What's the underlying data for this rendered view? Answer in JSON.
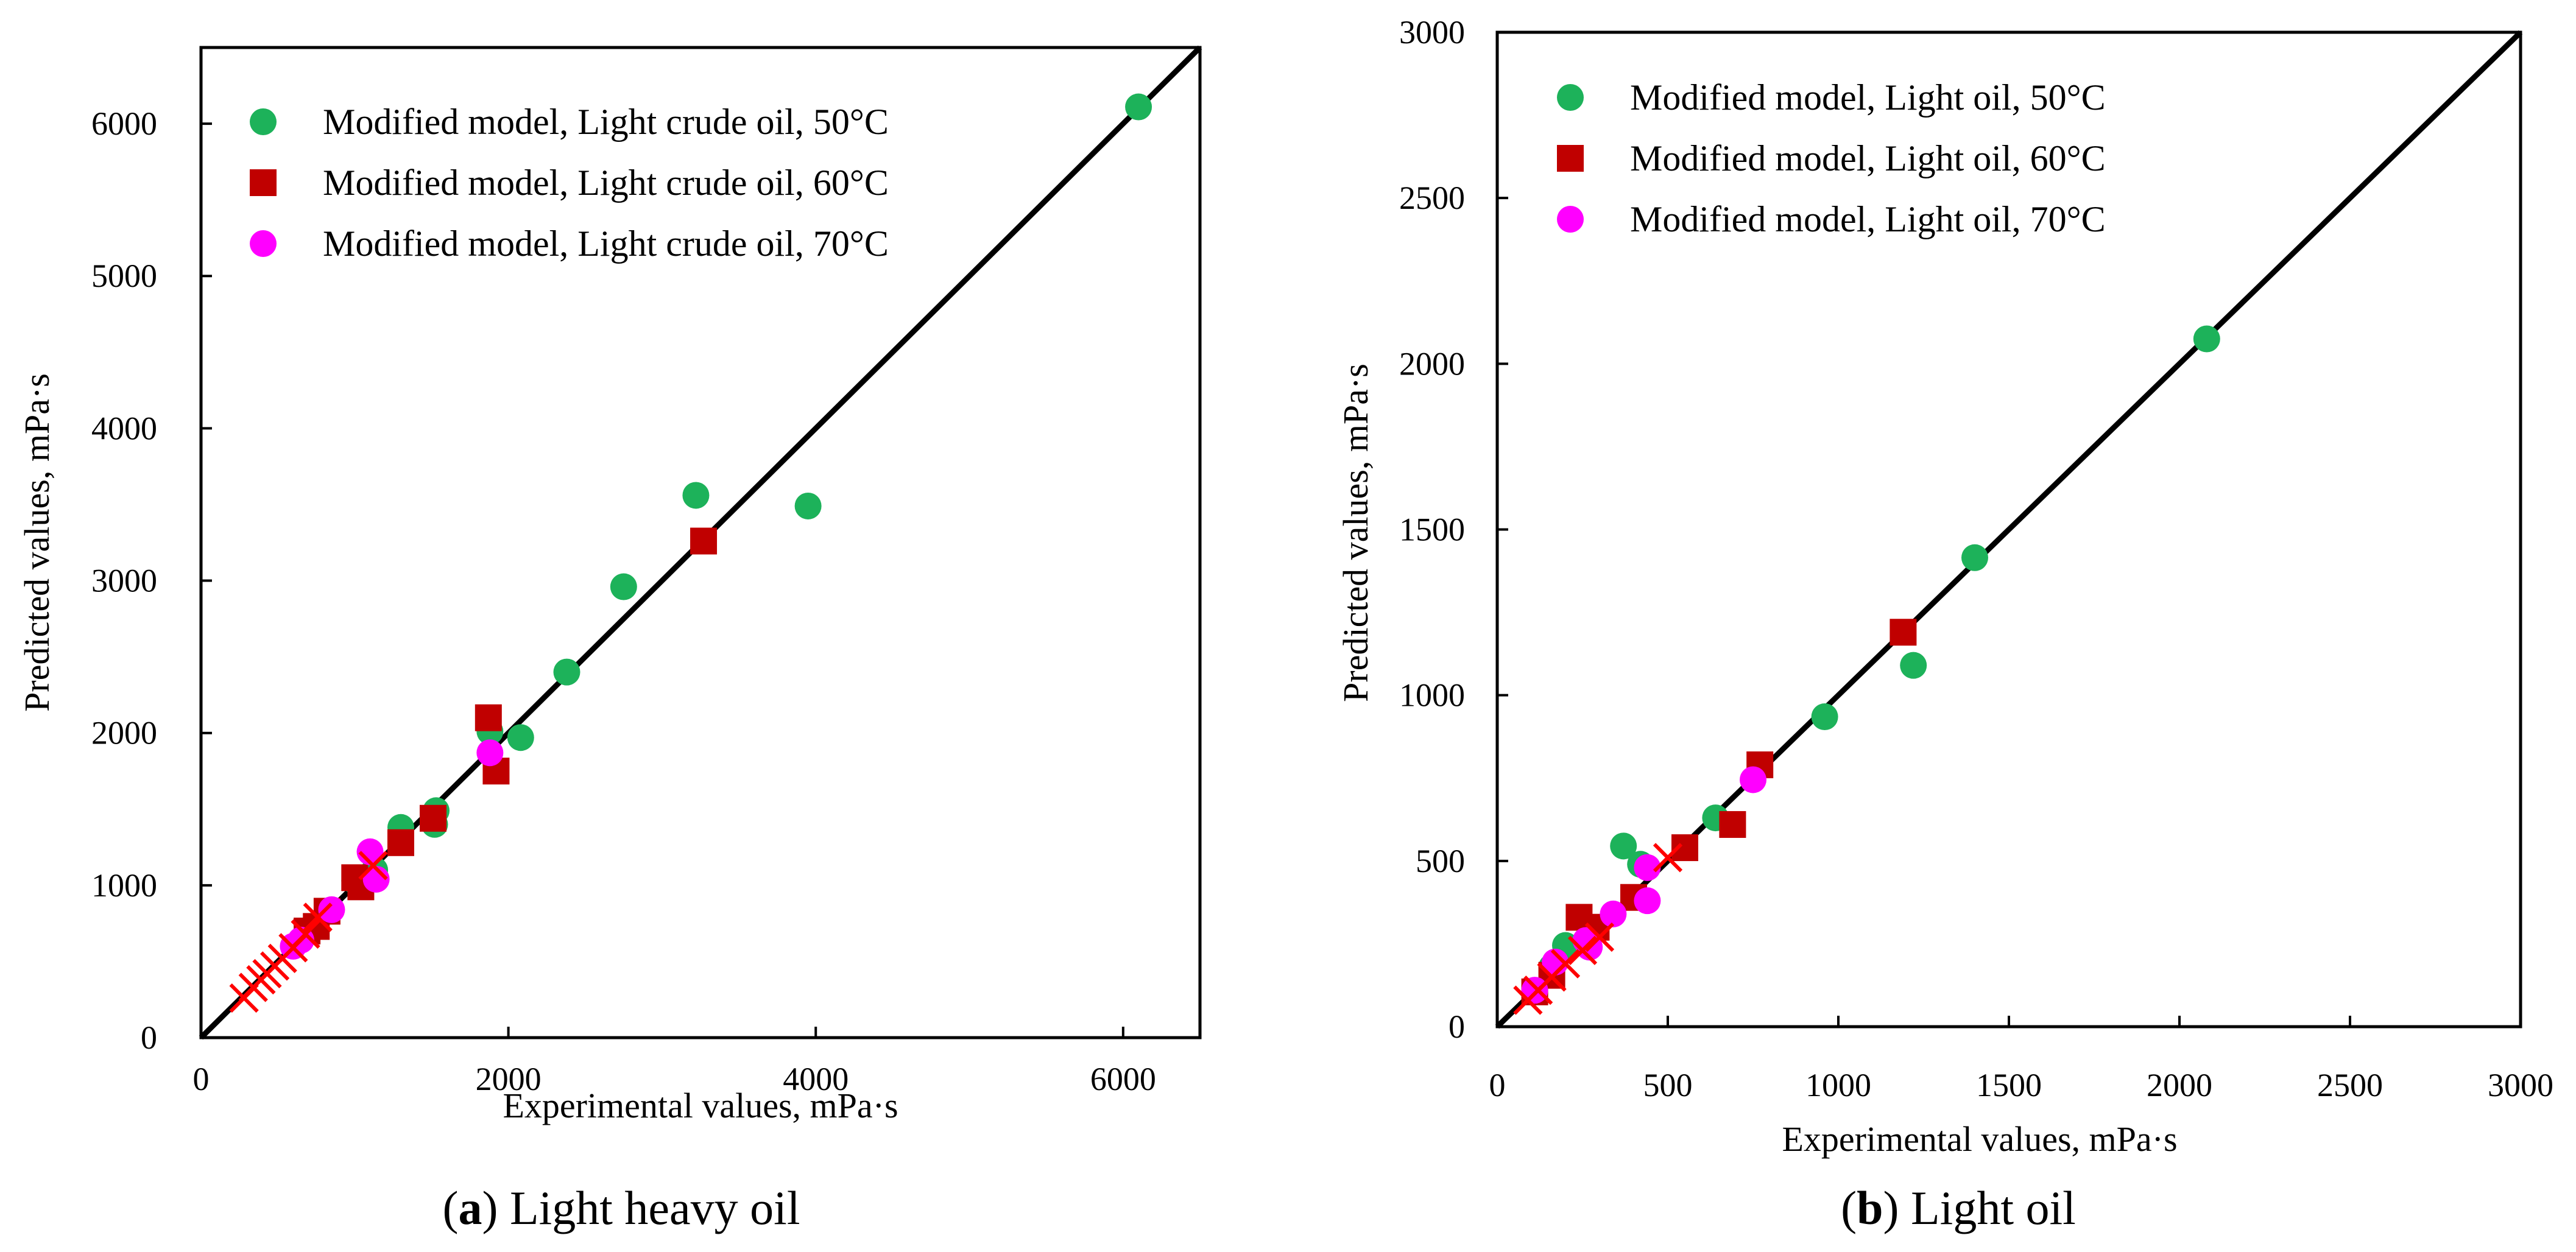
{
  "chart_data": [
    {
      "type": "scatter",
      "panel_label": "a",
      "caption": "Light heavy oil",
      "xlabel": "Experimental values, mPa·s",
      "ylabel": "Predicted values, mPa·s",
      "xlim": [
        0,
        6500
      ],
      "ylim": [
        0,
        6500
      ],
      "xticks": [
        0,
        2000,
        4000,
        6000
      ],
      "yticks": [
        0,
        1000,
        2000,
        3000,
        4000,
        5000,
        6000
      ],
      "xtick_labels": [
        "0",
        "2000",
        "4000",
        "6000"
      ],
      "ytick_labels": [
        "0",
        "1000",
        "2000",
        "3000",
        "4000",
        "5000",
        "6000"
      ],
      "legend_position": "top-left",
      "reference_line": {
        "from": [
          0,
          0
        ],
        "to": [
          6500,
          6500
        ]
      },
      "series": [
        {
          "name": "Modified model, Light crude oil, 50°C",
          "marker": "circle",
          "color": "#1db25a",
          "points": [
            [
              6100,
              6110
            ],
            [
              3950,
              3490
            ],
            [
              3220,
              3560
            ],
            [
              2750,
              2960
            ],
            [
              2380,
              2400
            ],
            [
              2080,
              1970
            ],
            [
              1880,
              2010
            ],
            [
              1530,
              1490
            ],
            [
              1520,
              1400
            ],
            [
              1300,
              1380
            ],
            [
              1130,
              1100
            ],
            [
              1000,
              1030
            ]
          ]
        },
        {
          "name": "Modified model, Light crude oil, 60°C",
          "marker": "square",
          "color": "#c00000",
          "points": [
            [
              3270,
              3260
            ],
            [
              1870,
              2100
            ],
            [
              1920,
              1750
            ],
            [
              1510,
              1440
            ],
            [
              1300,
              1280
            ],
            [
              1000,
              1050
            ],
            [
              1040,
              990
            ],
            [
              820,
              830
            ],
            [
              750,
              730
            ],
            [
              690,
              700
            ]
          ]
        },
        {
          "name": "Modified model, Light crude oil, 70°C",
          "marker": "circle",
          "color": "#ff00ff",
          "points": [
            [
              1880,
              1870
            ],
            [
              1100,
              1220
            ],
            [
              1140,
              1040
            ],
            [
              850,
              840
            ],
            [
              650,
              640
            ],
            [
              600,
              600
            ]
          ]
        },
        {
          "name": "",
          "marker": "x",
          "color": "#ff0000",
          "points": [
            [
              280,
              260
            ],
            [
              340,
              330
            ],
            [
              390,
              380
            ],
            [
              430,
              420
            ],
            [
              480,
              470
            ],
            [
              530,
              520
            ],
            [
              600,
              590
            ],
            [
              680,
              680
            ],
            [
              760,
              790
            ],
            [
              1120,
              1130
            ]
          ]
        }
      ]
    },
    {
      "type": "scatter",
      "panel_label": "b",
      "caption": "Light oil",
      "xlabel": "Experimental values, mPa·s",
      "ylabel": "Predicted values, mPa·s",
      "xlim": [
        0,
        3000
      ],
      "ylim": [
        0,
        3000
      ],
      "xticks": [
        0,
        500,
        1000,
        1500,
        2000,
        2500,
        3000
      ],
      "yticks": [
        0,
        500,
        1000,
        1500,
        2000,
        2500,
        3000
      ],
      "xtick_labels": [
        "0",
        "500",
        "1000",
        "1500",
        "2000",
        "2500",
        "3000"
      ],
      "ytick_labels": [
        "0",
        "500",
        "1000",
        "1500",
        "2000",
        "2500",
        "3000"
      ],
      "legend_position": "top-left",
      "reference_line": {
        "from": [
          0,
          0
        ],
        "to": [
          3000,
          3000
        ]
      },
      "series": [
        {
          "name": "Modified model, Light oil, 50°C",
          "marker": "circle",
          "color": "#1db25a",
          "points": [
            [
              2080,
              2075
            ],
            [
              1400,
              1415
            ],
            [
              1220,
              1090
            ],
            [
              960,
              935
            ],
            [
              640,
              630
            ],
            [
              370,
              545
            ],
            [
              420,
              490
            ],
            [
              200,
              245
            ],
            [
              160,
              180
            ]
          ]
        },
        {
          "name": "Modified model, Light oil, 60°C",
          "marker": "square",
          "color": "#c00000",
          "points": [
            [
              1190,
              1190
            ],
            [
              770,
              790
            ],
            [
              690,
              610
            ],
            [
              550,
              540
            ],
            [
              400,
              390
            ],
            [
              240,
              330
            ],
            [
              290,
              300
            ],
            [
              160,
              155
            ],
            [
              110,
              105
            ]
          ]
        },
        {
          "name": "Modified model, Light oil, 70°C",
          "marker": "circle",
          "color": "#ff00ff",
          "points": [
            [
              750,
              745
            ],
            [
              440,
              480
            ],
            [
              440,
              380
            ],
            [
              340,
              340
            ],
            [
              260,
              260
            ],
            [
              270,
              240
            ],
            [
              170,
              195
            ],
            [
              110,
              110
            ]
          ]
        },
        {
          "name": "",
          "marker": "x",
          "color": "#ff0000",
          "points": [
            [
              90,
              80
            ],
            [
              120,
              110
            ],
            [
              160,
              150
            ],
            [
              200,
              190
            ],
            [
              250,
              230
            ],
            [
              300,
              270
            ],
            [
              500,
              510
            ]
          ]
        }
      ]
    }
  ]
}
